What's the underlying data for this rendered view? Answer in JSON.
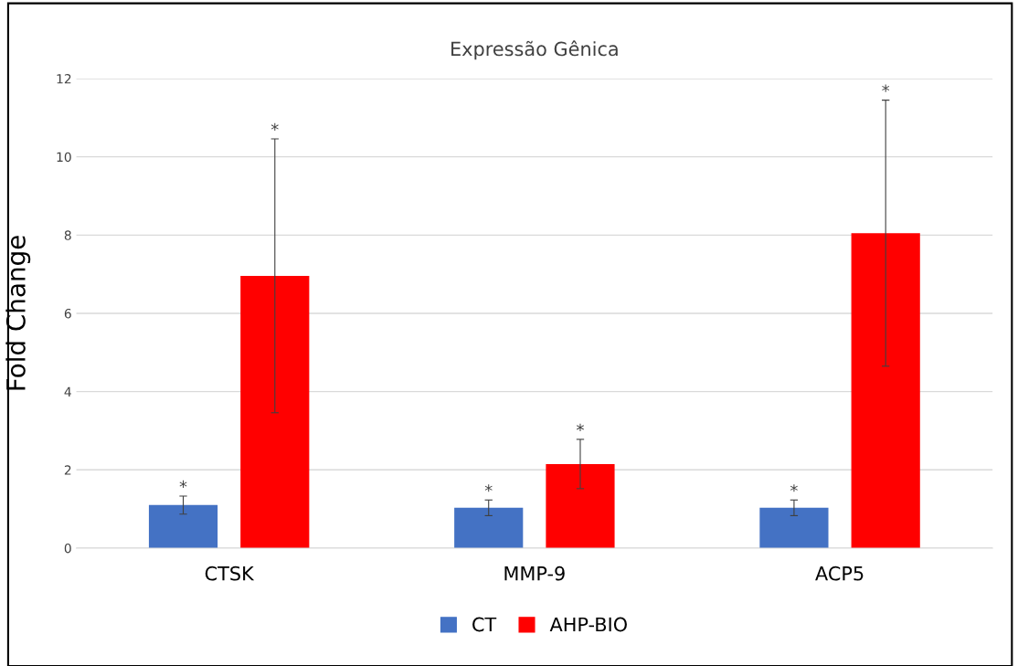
{
  "chart_data": {
    "type": "bar",
    "title": "Expressão Gênica",
    "ylabel": "Fold Change",
    "categories": [
      "CTSK",
      "MMP-9",
      "ACP5"
    ],
    "series": [
      {
        "name": "CT",
        "color": "#4472c4",
        "values": [
          1.1,
          1.03,
          1.03
        ],
        "errors": [
          0.23,
          0.2,
          0.2
        ]
      },
      {
        "name": "AHP-BIO",
        "color": "#ff0000",
        "values": [
          6.96,
          2.15,
          8.05
        ],
        "errors": [
          3.5,
          0.63,
          3.4
        ]
      }
    ],
    "ylim": [
      0,
      12
    ],
    "yticks": [
      0,
      2,
      4,
      6,
      8,
      10,
      12
    ],
    "grid": "y",
    "legend": "bottom",
    "annotations": [
      "*",
      "*",
      "*",
      "*",
      "*",
      "*"
    ]
  }
}
